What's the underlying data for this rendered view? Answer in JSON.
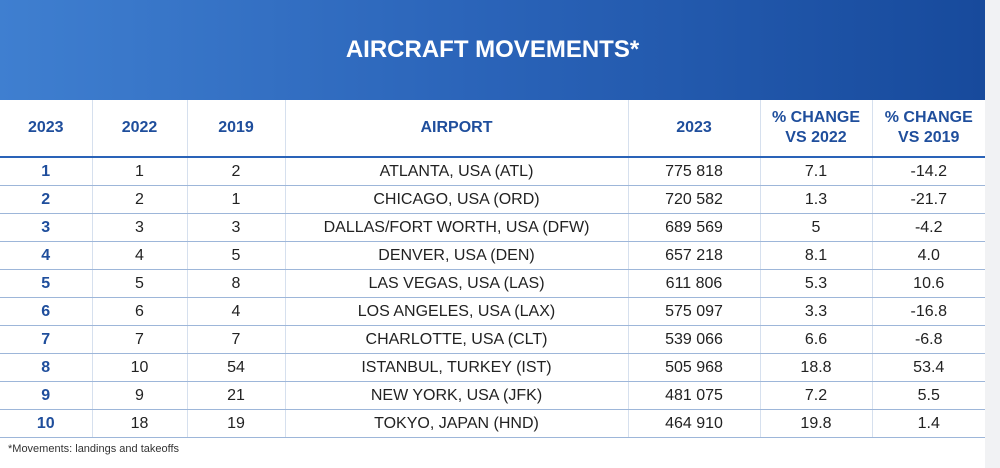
{
  "header": {
    "title": "AIRCRAFT MOVEMENTS*"
  },
  "table": {
    "columns": [
      "2023",
      "2022",
      "2019",
      "AIRPORT",
      "2023",
      "% CHANGE VS 2022",
      "% CHANGE VS 2019"
    ],
    "rows": [
      [
        "1",
        "1",
        "2",
        "ATLANTA, USA (ATL)",
        "775 818",
        "7.1",
        "-14.2"
      ],
      [
        "2",
        "2",
        "1",
        "CHICAGO, USA (ORD)",
        "720 582",
        "1.3",
        "-21.7"
      ],
      [
        "3",
        "3",
        "3",
        "DALLAS/FORT WORTH, USA (DFW)",
        "689 569",
        "5",
        "-4.2"
      ],
      [
        "4",
        "4",
        "5",
        "DENVER, USA (DEN)",
        "657 218",
        "8.1",
        "4.0"
      ],
      [
        "5",
        "5",
        "8",
        "LAS VEGAS, USA (LAS)",
        "611 806",
        "5.3",
        "10.6"
      ],
      [
        "6",
        "6",
        "4",
        "LOS ANGELES, USA (LAX)",
        "575 097",
        "3.3",
        "-16.8"
      ],
      [
        "7",
        "7",
        "7",
        "CHARLOTTE, USA (CLT)",
        "539 066",
        "6.6",
        "-6.8"
      ],
      [
        "8",
        "10",
        "54",
        "ISTANBUL, TURKEY (IST)",
        "505 968",
        "18.8",
        "53.4"
      ],
      [
        "9",
        "9",
        "21",
        "NEW YORK, USA (JFK)",
        "481 075",
        "7.2",
        "5.5"
      ],
      [
        "10",
        "18",
        "19",
        "TOKYO, JAPAN (HND)",
        "464 910",
        "19.8",
        "1.4"
      ]
    ]
  },
  "footnote": "*Movements: landings and takeoffs"
}
